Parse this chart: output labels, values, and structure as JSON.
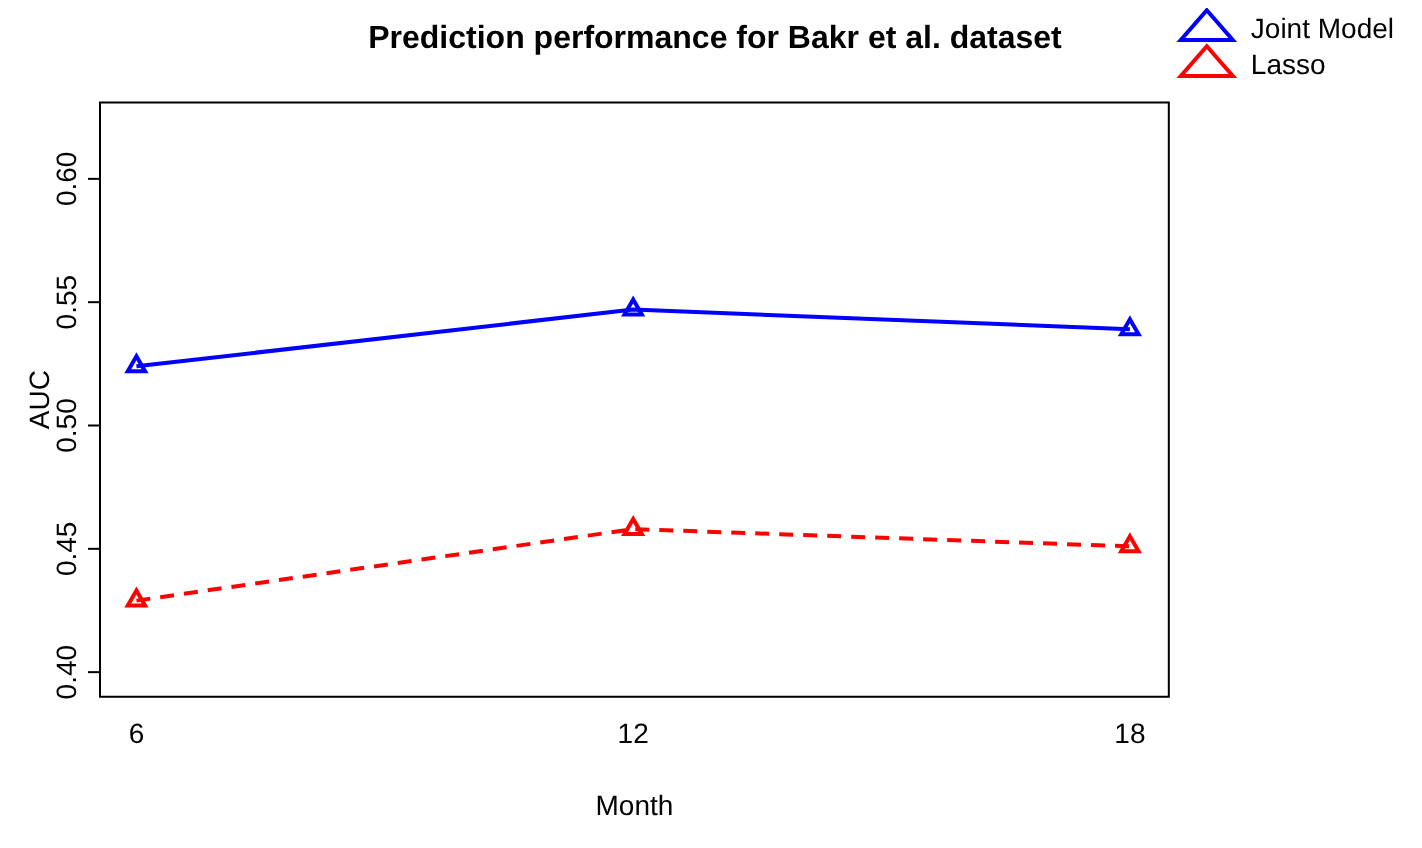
{
  "chart_data": {
    "type": "line",
    "title": "Prediction performance for Bakr et al. dataset",
    "xlabel": "Month",
    "ylabel": "AUC",
    "x": [
      6,
      12,
      18
    ],
    "series": [
      {
        "name": "Joint Model",
        "color": "#0000ff",
        "values": [
          0.524,
          0.547,
          0.539
        ],
        "line_style": "solid"
      },
      {
        "name": "Lasso",
        "color": "#ff0000",
        "values": [
          0.429,
          0.458,
          0.451
        ],
        "line_style": "dashed"
      }
    ],
    "xlim": [
      5.56,
      18.47
    ],
    "xticks": [
      6,
      12,
      18
    ],
    "ylim": [
      0.39,
      0.631
    ],
    "yticks": [
      {
        "value": 0.4,
        "label": "0.40"
      },
      {
        "value": 0.45,
        "label": "0.45"
      },
      {
        "value": 0.5,
        "label": "0.50"
      },
      {
        "value": 0.55,
        "label": "0.55"
      },
      {
        "value": 0.6,
        "label": "0.60"
      }
    ],
    "grid": false,
    "legend": "top right",
    "marker": "triangle"
  }
}
